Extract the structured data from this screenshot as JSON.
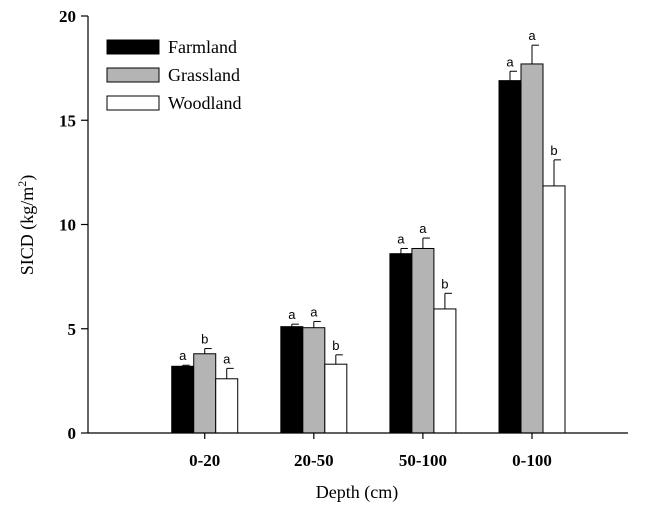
{
  "chart_data": {
    "type": "bar",
    "title": "",
    "xlabel": "Depth (cm)",
    "ylabel_main": "SICD (kg/m",
    "ylabel_sup": "2",
    "ylabel_tail": ")",
    "categories": [
      "0-20",
      "20-50",
      "50-100",
      "0-100"
    ],
    "ylim": [
      0,
      20
    ],
    "yticks": [
      "0",
      "5",
      "10",
      "15",
      "20"
    ],
    "legend_position": "top-left",
    "series": [
      {
        "name": "Farmland",
        "color": "#000000",
        "values": [
          3.2,
          5.1,
          8.6,
          16.9
        ],
        "errors": [
          0.05,
          0.12,
          0.25,
          0.45
        ],
        "sig": [
          "a",
          "a",
          "a",
          "a"
        ]
      },
      {
        "name": "Grassland",
        "color": "#b4b4b4",
        "values": [
          3.8,
          5.05,
          8.85,
          17.7
        ],
        "errors": [
          0.25,
          0.3,
          0.5,
          0.9
        ],
        "sig": [
          "b",
          "a",
          "a",
          "a"
        ]
      },
      {
        "name": "Woodland",
        "color": "#ffffff",
        "values": [
          2.6,
          3.3,
          5.95,
          11.85
        ],
        "errors": [
          0.5,
          0.45,
          0.75,
          1.25
        ],
        "sig": [
          "a",
          "b",
          "b",
          "b"
        ]
      }
    ]
  }
}
